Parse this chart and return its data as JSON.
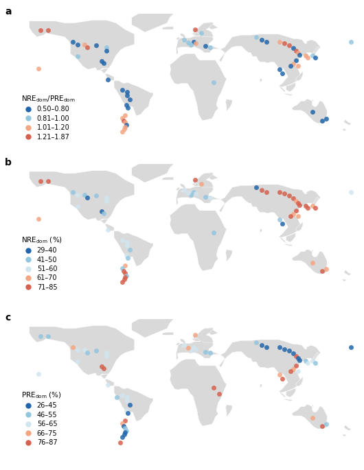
{
  "background_color": "#ffffff",
  "land_color": "#d9d9d9",
  "ocean_color": "#ffffff",
  "border_color": "#ffffff",
  "panels": [
    {
      "label": "a",
      "legend_title": "NRE$_\\mathrm{dom}$/PRE$_\\mathrm{dom}$",
      "legend_entries": [
        {
          "range": "0.50–0.80",
          "color": "#2166ac"
        },
        {
          "range": "0.81–1.00",
          "color": "#92c5de"
        },
        {
          "range": "1.01–1.20",
          "color": "#f4a582"
        },
        {
          "range": "1.21–1.87",
          "color": "#d6604d"
        }
      ],
      "points": [
        {
          "lon": -156,
          "lat": 62,
          "color": "#d6604d"
        },
        {
          "lon": -148,
          "lat": 62,
          "color": "#d6604d"
        },
        {
          "lon": -121,
          "lat": 50,
          "color": "#2166ac"
        },
        {
          "lon": -116,
          "lat": 47,
          "color": "#2166ac"
        },
        {
          "lon": -109,
          "lat": 47,
          "color": "#f4a582"
        },
        {
          "lon": -106,
          "lat": 44,
          "color": "#d6604d"
        },
        {
          "lon": -96,
          "lat": 46,
          "color": "#2166ac"
        },
        {
          "lon": -85,
          "lat": 44,
          "color": "#92c5de"
        },
        {
          "lon": -85,
          "lat": 40,
          "color": "#2166ac"
        },
        {
          "lon": -116,
          "lat": 34,
          "color": "#92c5de"
        },
        {
          "lon": -158,
          "lat": 21,
          "color": "#f4a582"
        },
        {
          "lon": -90,
          "lat": 29,
          "color": "#2166ac"
        },
        {
          "lon": -88,
          "lat": 27,
          "color": "#2166ac"
        },
        {
          "lon": -84,
          "lat": 9,
          "color": "#2166ac"
        },
        {
          "lon": -68,
          "lat": -2,
          "color": "#2166ac"
        },
        {
          "lon": -63,
          "lat": -4,
          "color": "#2166ac"
        },
        {
          "lon": -63,
          "lat": -8,
          "color": "#2166ac"
        },
        {
          "lon": -60,
          "lat": -12,
          "color": "#2166ac"
        },
        {
          "lon": -64,
          "lat": -18,
          "color": "#2166ac"
        },
        {
          "lon": -62,
          "lat": -21,
          "color": "#2166ac"
        },
        {
          "lon": -65,
          "lat": -29,
          "color": "#f4a582"
        },
        {
          "lon": -68,
          "lat": -32,
          "color": "#f4a582"
        },
        {
          "lon": -67,
          "lat": -35,
          "color": "#d6604d"
        },
        {
          "lon": -65,
          "lat": -37,
          "color": "#f4a582"
        },
        {
          "lon": -64,
          "lat": -40,
          "color": "#2166ac"
        },
        {
          "lon": -65,
          "lat": -42,
          "color": "#f4a582"
        },
        {
          "lon": -66,
          "lat": -44,
          "color": "#f4a582"
        },
        {
          "lon": -68,
          "lat": -47,
          "color": "#f4a582"
        },
        {
          "lon": 10,
          "lat": 63,
          "color": "#d6604d"
        },
        {
          "lon": 17,
          "lat": 59,
          "color": "#92c5de"
        },
        {
          "lon": 9,
          "lat": 50,
          "color": "#2166ac"
        },
        {
          "lon": 11,
          "lat": 48,
          "color": "#f4a582"
        },
        {
          "lon": 6,
          "lat": 47,
          "color": "#92c5de"
        },
        {
          "lon": 3,
          "lat": 49,
          "color": "#92c5de"
        },
        {
          "lon": -2,
          "lat": 52,
          "color": "#92c5de"
        },
        {
          "lon": 21,
          "lat": 45,
          "color": "#2166ac"
        },
        {
          "lon": 26,
          "lat": 44,
          "color": "#92c5de"
        },
        {
          "lon": 30,
          "lat": 6,
          "color": "#92c5de"
        },
        {
          "lon": 76,
          "lat": 55,
          "color": "#92c5de"
        },
        {
          "lon": 82,
          "lat": 52,
          "color": "#2166ac"
        },
        {
          "lon": 87,
          "lat": 50,
          "color": "#2166ac"
        },
        {
          "lon": 101,
          "lat": 50,
          "color": "#f4a582"
        },
        {
          "lon": 106,
          "lat": 48,
          "color": "#d6604d"
        },
        {
          "lon": 111,
          "lat": 46,
          "color": "#d6604d"
        },
        {
          "lon": 116,
          "lat": 43,
          "color": "#2166ac"
        },
        {
          "lon": 119,
          "lat": 40,
          "color": "#d6604d"
        },
        {
          "lon": 121,
          "lat": 38,
          "color": "#f4a582"
        },
        {
          "lon": 122,
          "lat": 36,
          "color": "#2166ac"
        },
        {
          "lon": 119,
          "lat": 30,
          "color": "#2166ac"
        },
        {
          "lon": 116,
          "lat": 26,
          "color": "#f4a582"
        },
        {
          "lon": 113,
          "lat": 24,
          "color": "#2166ac"
        },
        {
          "lon": 121,
          "lat": 24,
          "color": "#f4a582"
        },
        {
          "lon": 101,
          "lat": 20,
          "color": "#2166ac"
        },
        {
          "lon": 104,
          "lat": 16,
          "color": "#2166ac"
        },
        {
          "lon": 129,
          "lat": 35,
          "color": "#f4a582"
        },
        {
          "lon": 131,
          "lat": 33,
          "color": "#f4a582"
        },
        {
          "lon": 136,
          "lat": 35,
          "color": "#92c5de"
        },
        {
          "lon": 139,
          "lat": 33,
          "color": "#2166ac"
        },
        {
          "lon": 136,
          "lat": -26,
          "color": "#2166ac"
        },
        {
          "lon": 147,
          "lat": -35,
          "color": "#2166ac"
        },
        {
          "lon": 151,
          "lat": -33,
          "color": "#2166ac"
        },
        {
          "lon": 178,
          "lat": 50,
          "color": "#92c5de"
        }
      ]
    },
    {
      "label": "b",
      "legend_title": "NRE$_\\mathrm{dom}$ (%)",
      "legend_entries": [
        {
          "range": "29–40",
          "color": "#2166ac"
        },
        {
          "range": "41–50",
          "color": "#92c5de"
        },
        {
          "range": "51–60",
          "color": "#d1e5f0"
        },
        {
          "range": "61–70",
          "color": "#f4a582"
        },
        {
          "range": "71–85",
          "color": "#d6604d"
        }
      ],
      "points": [
        {
          "lon": -156,
          "lat": 62,
          "color": "#d6604d"
        },
        {
          "lon": -148,
          "lat": 62,
          "color": "#d6604d"
        },
        {
          "lon": -121,
          "lat": 50,
          "color": "#92c5de"
        },
        {
          "lon": -116,
          "lat": 47,
          "color": "#d1e5f0"
        },
        {
          "lon": -109,
          "lat": 47,
          "color": "#92c5de"
        },
        {
          "lon": -106,
          "lat": 44,
          "color": "#2166ac"
        },
        {
          "lon": -96,
          "lat": 46,
          "color": "#92c5de"
        },
        {
          "lon": -85,
          "lat": 44,
          "color": "#d1e5f0"
        },
        {
          "lon": -85,
          "lat": 40,
          "color": "#d1e5f0"
        },
        {
          "lon": -116,
          "lat": 34,
          "color": "#d1e5f0"
        },
        {
          "lon": -158,
          "lat": 21,
          "color": "#f4a582"
        },
        {
          "lon": -90,
          "lat": 29,
          "color": "#2166ac"
        },
        {
          "lon": -88,
          "lat": 27,
          "color": "#92c5de"
        },
        {
          "lon": -84,
          "lat": 9,
          "color": "#d1e5f0"
        },
        {
          "lon": -68,
          "lat": -2,
          "color": "#d1e5f0"
        },
        {
          "lon": -63,
          "lat": -4,
          "color": "#d1e5f0"
        },
        {
          "lon": -63,
          "lat": -8,
          "color": "#d1e5f0"
        },
        {
          "lon": -60,
          "lat": -12,
          "color": "#92c5de"
        },
        {
          "lon": -64,
          "lat": -18,
          "color": "#d1e5f0"
        },
        {
          "lon": -62,
          "lat": -21,
          "color": "#92c5de"
        },
        {
          "lon": -65,
          "lat": -29,
          "color": "#f4a582"
        },
        {
          "lon": -68,
          "lat": -32,
          "color": "#92c5de"
        },
        {
          "lon": -67,
          "lat": -35,
          "color": "#d6604d"
        },
        {
          "lon": -65,
          "lat": -37,
          "color": "#d6604d"
        },
        {
          "lon": -64,
          "lat": -40,
          "color": "#92c5de"
        },
        {
          "lon": -65,
          "lat": -42,
          "color": "#d6604d"
        },
        {
          "lon": -66,
          "lat": -44,
          "color": "#d6604d"
        },
        {
          "lon": -68,
          "lat": -47,
          "color": "#d6604d"
        },
        {
          "lon": 10,
          "lat": 63,
          "color": "#d6604d"
        },
        {
          "lon": 17,
          "lat": 59,
          "color": "#f4a582"
        },
        {
          "lon": 9,
          "lat": 50,
          "color": "#92c5de"
        },
        {
          "lon": 11,
          "lat": 48,
          "color": "#d1e5f0"
        },
        {
          "lon": 6,
          "lat": 47,
          "color": "#92c5de"
        },
        {
          "lon": 3,
          "lat": 49,
          "color": "#d1e5f0"
        },
        {
          "lon": -2,
          "lat": 52,
          "color": "#d1e5f0"
        },
        {
          "lon": 21,
          "lat": 45,
          "color": "#92c5de"
        },
        {
          "lon": 26,
          "lat": 44,
          "color": "#d1e5f0"
        },
        {
          "lon": 30,
          "lat": 6,
          "color": "#92c5de"
        },
        {
          "lon": 76,
          "lat": 55,
          "color": "#2166ac"
        },
        {
          "lon": 82,
          "lat": 52,
          "color": "#d6604d"
        },
        {
          "lon": 87,
          "lat": 50,
          "color": "#d6604d"
        },
        {
          "lon": 101,
          "lat": 50,
          "color": "#d6604d"
        },
        {
          "lon": 106,
          "lat": 48,
          "color": "#d6604d"
        },
        {
          "lon": 111,
          "lat": 46,
          "color": "#d6604d"
        },
        {
          "lon": 116,
          "lat": 43,
          "color": "#d6604d"
        },
        {
          "lon": 119,
          "lat": 40,
          "color": "#f4a582"
        },
        {
          "lon": 121,
          "lat": 38,
          "color": "#d6604d"
        },
        {
          "lon": 122,
          "lat": 36,
          "color": "#d6604d"
        },
        {
          "lon": 119,
          "lat": 30,
          "color": "#d6604d"
        },
        {
          "lon": 116,
          "lat": 26,
          "color": "#f4a582"
        },
        {
          "lon": 113,
          "lat": 24,
          "color": "#d6604d"
        },
        {
          "lon": 121,
          "lat": 24,
          "color": "#f4a582"
        },
        {
          "lon": 101,
          "lat": 20,
          "color": "#92c5de"
        },
        {
          "lon": 104,
          "lat": 16,
          "color": "#2166ac"
        },
        {
          "lon": 129,
          "lat": 35,
          "color": "#d6604d"
        },
        {
          "lon": 131,
          "lat": 33,
          "color": "#d6604d"
        },
        {
          "lon": 136,
          "lat": 35,
          "color": "#f4a582"
        },
        {
          "lon": 139,
          "lat": 33,
          "color": "#d6604d"
        },
        {
          "lon": 136,
          "lat": -26,
          "color": "#f4a582"
        },
        {
          "lon": 147,
          "lat": -35,
          "color": "#d6604d"
        },
        {
          "lon": 151,
          "lat": -33,
          "color": "#f4a582"
        },
        {
          "lon": 178,
          "lat": 50,
          "color": "#d1e5f0"
        }
      ]
    },
    {
      "label": "c",
      "legend_title": "PRE$_\\mathrm{dom}$ (%)",
      "legend_entries": [
        {
          "range": "26–45",
          "color": "#2166ac"
        },
        {
          "range": "46–55",
          "color": "#92c5de"
        },
        {
          "range": "56–65",
          "color": "#d1e5f0"
        },
        {
          "range": "66–75",
          "color": "#f4a582"
        },
        {
          "range": "76–87",
          "color": "#d6604d"
        }
      ],
      "points": [
        {
          "lon": -156,
          "lat": 62,
          "color": "#92c5de"
        },
        {
          "lon": -148,
          "lat": 62,
          "color": "#92c5de"
        },
        {
          "lon": -121,
          "lat": 50,
          "color": "#f4a582"
        },
        {
          "lon": -116,
          "lat": 47,
          "color": "#d1e5f0"
        },
        {
          "lon": -109,
          "lat": 47,
          "color": "#d1e5f0"
        },
        {
          "lon": -106,
          "lat": 44,
          "color": "#92c5de"
        },
        {
          "lon": -96,
          "lat": 46,
          "color": "#92c5de"
        },
        {
          "lon": -85,
          "lat": 44,
          "color": "#d1e5f0"
        },
        {
          "lon": -85,
          "lat": 40,
          "color": "#d1e5f0"
        },
        {
          "lon": -116,
          "lat": 34,
          "color": "#d1e5f0"
        },
        {
          "lon": -158,
          "lat": 21,
          "color": "#d1e5f0"
        },
        {
          "lon": -90,
          "lat": 29,
          "color": "#d6604d"
        },
        {
          "lon": -88,
          "lat": 27,
          "color": "#d6604d"
        },
        {
          "lon": -84,
          "lat": 9,
          "color": "#d1e5f0"
        },
        {
          "lon": -74,
          "lat": -4,
          "color": "#92c5de"
        },
        {
          "lon": -68,
          "lat": -2,
          "color": "#d1e5f0"
        },
        {
          "lon": -63,
          "lat": -4,
          "color": "#d1e5f0"
        },
        {
          "lon": -63,
          "lat": -8,
          "color": "#d1e5f0"
        },
        {
          "lon": -60,
          "lat": -12,
          "color": "#2166ac"
        },
        {
          "lon": -64,
          "lat": -18,
          "color": "#d1e5f0"
        },
        {
          "lon": -62,
          "lat": -21,
          "color": "#2166ac"
        },
        {
          "lon": -65,
          "lat": -29,
          "color": "#d6604d"
        },
        {
          "lon": -68,
          "lat": -32,
          "color": "#f4a582"
        },
        {
          "lon": -67,
          "lat": -35,
          "color": "#2166ac"
        },
        {
          "lon": -65,
          "lat": -37,
          "color": "#92c5de"
        },
        {
          "lon": -64,
          "lat": -40,
          "color": "#92c5de"
        },
        {
          "lon": -65,
          "lat": -42,
          "color": "#2166ac"
        },
        {
          "lon": -66,
          "lat": -44,
          "color": "#2166ac"
        },
        {
          "lon": -68,
          "lat": -47,
          "color": "#2166ac"
        },
        {
          "lon": -70,
          "lat": -53,
          "color": "#d6604d"
        },
        {
          "lon": 10,
          "lat": 63,
          "color": "#f4a582"
        },
        {
          "lon": 9,
          "lat": 50,
          "color": "#d1e5f0"
        },
        {
          "lon": 11,
          "lat": 48,
          "color": "#d1e5f0"
        },
        {
          "lon": 6,
          "lat": 47,
          "color": "#d1e5f0"
        },
        {
          "lon": 3,
          "lat": 49,
          "color": "#f4a582"
        },
        {
          "lon": -2,
          "lat": 52,
          "color": "#d1e5f0"
        },
        {
          "lon": 21,
          "lat": 45,
          "color": "#92c5de"
        },
        {
          "lon": 26,
          "lat": 44,
          "color": "#92c5de"
        },
        {
          "lon": 30,
          "lat": 6,
          "color": "#d6604d"
        },
        {
          "lon": 36,
          "lat": 0,
          "color": "#d6604d"
        },
        {
          "lon": 76,
          "lat": 55,
          "color": "#92c5de"
        },
        {
          "lon": 82,
          "lat": 52,
          "color": "#2166ac"
        },
        {
          "lon": 87,
          "lat": 50,
          "color": "#2166ac"
        },
        {
          "lon": 101,
          "lat": 50,
          "color": "#2166ac"
        },
        {
          "lon": 106,
          "lat": 48,
          "color": "#2166ac"
        },
        {
          "lon": 111,
          "lat": 46,
          "color": "#2166ac"
        },
        {
          "lon": 116,
          "lat": 43,
          "color": "#2166ac"
        },
        {
          "lon": 119,
          "lat": 40,
          "color": "#d6604d"
        },
        {
          "lon": 121,
          "lat": 38,
          "color": "#2166ac"
        },
        {
          "lon": 122,
          "lat": 36,
          "color": "#2166ac"
        },
        {
          "lon": 119,
          "lat": 30,
          "color": "#d6604d"
        },
        {
          "lon": 116,
          "lat": 26,
          "color": "#f4a582"
        },
        {
          "lon": 113,
          "lat": 24,
          "color": "#d6604d"
        },
        {
          "lon": 121,
          "lat": 24,
          "color": "#d1e5f0"
        },
        {
          "lon": 101,
          "lat": 20,
          "color": "#f4a582"
        },
        {
          "lon": 104,
          "lat": 16,
          "color": "#d6604d"
        },
        {
          "lon": 129,
          "lat": 35,
          "color": "#92c5de"
        },
        {
          "lon": 131,
          "lat": 33,
          "color": "#d1e5f0"
        },
        {
          "lon": 136,
          "lat": 35,
          "color": "#d1e5f0"
        },
        {
          "lon": 139,
          "lat": 33,
          "color": "#92c5de"
        },
        {
          "lon": 136,
          "lat": -26,
          "color": "#f4a582"
        },
        {
          "lon": 147,
          "lat": -35,
          "color": "#d6604d"
        },
        {
          "lon": 151,
          "lat": -33,
          "color": "#92c5de"
        },
        {
          "lon": 178,
          "lat": 50,
          "color": "#2166ac"
        }
      ]
    }
  ]
}
